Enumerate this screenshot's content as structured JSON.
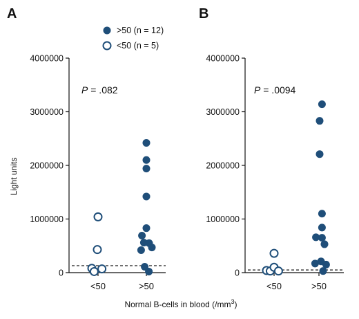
{
  "colors": {
    "filled": "#1f4e79",
    "open_stroke": "#1f4e79",
    "open_fill": "#ffffff"
  },
  "legend": [
    {
      "label": ">50 (n = 12)",
      "marker": "filled"
    },
    {
      "label": "<50 (n = 5)",
      "marker": "open"
    }
  ],
  "x_axis_title": "Normal B-cells in blood (/mm",
  "x_axis_title_sup": "3",
  "x_axis_title_end": ")",
  "y_axis_title": "Light units",
  "chart_data": [
    {
      "type": "scatter",
      "panel": "A",
      "p_label": "P",
      "p_value": " = .082",
      "categories": [
        "<50",
        ">50"
      ],
      "ylim": [
        0,
        4000000
      ],
      "yticks": [
        "0",
        "1000000",
        "2000000",
        "3000000",
        "4000000"
      ],
      "threshold": 130000,
      "series": [
        {
          "name": "<50 (n = 5)",
          "marker": "open",
          "category": "<50",
          "points": [
            {
              "offset": -0.45,
              "y": 80000
            },
            {
              "offset": -0.28,
              "y": 20000
            },
            {
              "offset": 0.0,
              "y": 1040000
            },
            {
              "offset": -0.05,
              "y": 430000
            },
            {
              "offset": 0.28,
              "y": 70000
            }
          ]
        },
        {
          "name": ">50 (n = 12)",
          "marker": "filled",
          "category": ">50",
          "points": [
            {
              "offset": 0.0,
              "y": 2420000
            },
            {
              "offset": 0.0,
              "y": 2100000
            },
            {
              "offset": 0.0,
              "y": 1940000
            },
            {
              "offset": 0.0,
              "y": 1420000
            },
            {
              "offset": 0.0,
              "y": 830000
            },
            {
              "offset": -0.32,
              "y": 690000
            },
            {
              "offset": -0.18,
              "y": 560000
            },
            {
              "offset": -0.38,
              "y": 420000
            },
            {
              "offset": 0.2,
              "y": 550000
            },
            {
              "offset": 0.4,
              "y": 470000
            },
            {
              "offset": -0.12,
              "y": 110000
            },
            {
              "offset": 0.18,
              "y": 20000
            }
          ]
        }
      ]
    },
    {
      "type": "scatter",
      "panel": "B",
      "p_label": "P",
      "p_value": " = .0094",
      "categories": [
        "<50",
        ">50"
      ],
      "ylim": [
        0,
        4000000
      ],
      "yticks": [
        "0",
        "1000000",
        "2000000",
        "3000000",
        "4000000"
      ],
      "threshold": 50000,
      "series": [
        {
          "name": "<50 (n = 5)",
          "marker": "open",
          "category": "<50",
          "points": [
            {
              "offset": -0.55,
              "y": 40000
            },
            {
              "offset": -0.28,
              "y": 30000
            },
            {
              "offset": 0.0,
              "y": 360000
            },
            {
              "offset": 0.0,
              "y": 100000
            },
            {
              "offset": 0.32,
              "y": 30000
            }
          ]
        },
        {
          "name": ">50 (n = 12)",
          "marker": "filled",
          "category": ">50",
          "points": [
            {
              "offset": 0.22,
              "y": 3140000
            },
            {
              "offset": 0.05,
              "y": 2830000
            },
            {
              "offset": 0.05,
              "y": 2210000
            },
            {
              "offset": 0.22,
              "y": 1100000
            },
            {
              "offset": 0.22,
              "y": 840000
            },
            {
              "offset": -0.22,
              "y": 660000
            },
            {
              "offset": 0.22,
              "y": 650000
            },
            {
              "offset": 0.4,
              "y": 530000
            },
            {
              "offset": -0.28,
              "y": 170000
            },
            {
              "offset": 0.15,
              "y": 210000
            },
            {
              "offset": 0.52,
              "y": 150000
            },
            {
              "offset": 0.3,
              "y": 30000
            }
          ]
        }
      ]
    }
  ]
}
